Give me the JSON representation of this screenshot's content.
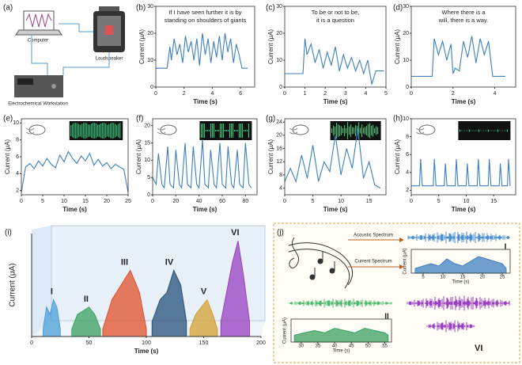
{
  "chart_data": [
    {
      "type": "line",
      "panel": "(b)",
      "annotation": [
        "If I have seen further it is by",
        "standing on shoulders of giants"
      ],
      "xlabel": "Time (s)",
      "ylabel": "Current (μA)",
      "color": "#3d7fbf",
      "x": [
        0,
        0.5,
        0.8,
        1,
        1.1,
        1.3,
        1.5,
        1.7,
        1.9,
        2.1,
        2.3,
        2.5,
        2.7,
        2.9,
        3.1,
        3.3,
        3.5,
        3.7,
        3.9,
        4.1,
        4.3,
        4.5,
        4.7,
        4.9,
        5.1,
        5.3,
        5.5,
        5.7,
        5.9,
        6.1,
        6.5
      ],
      "values": [
        7,
        7,
        7,
        15,
        10,
        18,
        12,
        16,
        9,
        19,
        13,
        17,
        10,
        18,
        8,
        20,
        12,
        18,
        9,
        17,
        11,
        19,
        10,
        20,
        13,
        18,
        9,
        16,
        12,
        7,
        7
      ],
      "xlim": [
        0,
        7
      ],
      "ylim": [
        0,
        30
      ],
      "xticks": [
        0,
        2,
        4,
        6
      ],
      "yticks": [
        0,
        10,
        20,
        30
      ]
    },
    {
      "type": "line",
      "panel": "(c)",
      "annotation": [
        "To be or not to be,",
        "it is a question"
      ],
      "xlabel": "Time (s)",
      "ylabel": "Current (μA)",
      "color": "#3d7fbf",
      "x": [
        0,
        0.5,
        0.9,
        1,
        1.1,
        1.3,
        1.5,
        1.7,
        1.9,
        2.1,
        2.3,
        2.5,
        2.7,
        2.9,
        3.1,
        3.3,
        3.5,
        3.7,
        3.9,
        4.1,
        4.3,
        4.5,
        4.9
      ],
      "values": [
        5,
        5,
        5,
        18,
        12,
        16,
        9,
        14,
        7,
        13,
        8,
        15,
        6,
        12,
        7,
        11,
        6,
        10,
        5,
        10,
        1,
        6,
        6
      ],
      "xlim": [
        0,
        5
      ],
      "ylim": [
        0,
        30
      ],
      "xticks": [
        0,
        1,
        2,
        3,
        4,
        5
      ],
      "yticks": [
        0,
        10,
        20,
        30
      ]
    },
    {
      "type": "line",
      "panel": "(d)",
      "annotation": [
        "Where there is a",
        "will, there is a way."
      ],
      "xlabel": "Time (s)",
      "ylabel": "Current (μA)",
      "color": "#3d7fbf",
      "x": [
        0,
        0.5,
        1,
        1.1,
        1.3,
        1.5,
        1.7,
        1.9,
        2,
        2.1,
        2.3,
        2.5,
        2.7,
        2.9,
        3.1,
        3.3,
        3.5,
        3.7,
        3.9,
        4.1,
        4.5
      ],
      "values": [
        4,
        4,
        4,
        18,
        12,
        17,
        10,
        16,
        5,
        7,
        6,
        17,
        11,
        19,
        9,
        18,
        12,
        17,
        4,
        4,
        4
      ],
      "xlim": [
        0,
        5
      ],
      "ylim": [
        0,
        30
      ],
      "xticks": [
        0,
        2,
        4
      ],
      "yticks": [
        0,
        10,
        20,
        30
      ]
    },
    {
      "type": "line",
      "panel": "(e)",
      "xlabel": "Time (s)",
      "ylabel": "Current (μA)",
      "color": "#3d7fbf",
      "x": [
        0,
        1,
        2,
        3,
        4,
        5,
        6,
        7,
        8,
        9,
        10,
        11,
        12,
        13,
        14,
        15,
        16,
        17,
        18,
        19,
        20,
        21,
        22,
        23,
        24,
        25
      ],
      "values": [
        1.8,
        4.8,
        5.2,
        4.6,
        5.5,
        4.9,
        5.8,
        5.1,
        4.7,
        6.2,
        5.4,
        6.6,
        5.8,
        5.2,
        6.1,
        5.5,
        6.4,
        5.0,
        5.7,
        4.9,
        5.3,
        4.6,
        5.1,
        4.8,
        4.5,
        1.8
      ],
      "xlim": [
        0,
        25
      ],
      "ylim": [
        1.5,
        10.5
      ],
      "xticks": [
        0,
        5,
        10,
        15,
        20,
        25
      ],
      "yticks": [
        2,
        4,
        6,
        8,
        10
      ]
    },
    {
      "type": "line",
      "panel": "(f)",
      "xlabel": "Time (s)",
      "ylabel": "Current (μA)",
      "color": "#3d7fbf",
      "x": [
        0,
        3,
        5,
        8,
        10,
        13,
        15,
        18,
        20,
        23,
        25,
        28,
        30,
        33,
        35,
        38,
        40,
        43,
        45,
        48,
        50,
        53,
        55,
        58,
        60,
        63,
        65,
        68,
        70,
        73,
        75,
        78,
        80,
        83,
        85
      ],
      "values": [
        5,
        3,
        12,
        3,
        2,
        14,
        3,
        2,
        13,
        3,
        2,
        15,
        3,
        2,
        14,
        3,
        2,
        16,
        3,
        2,
        13,
        3,
        2,
        15,
        3,
        2,
        14,
        3,
        2,
        13,
        3,
        2,
        15,
        3,
        2
      ],
      "xlim": [
        0,
        90
      ],
      "ylim": [
        0,
        22
      ],
      "xticks": [
        0,
        20,
        40,
        60,
        80
      ],
      "yticks": [
        0,
        5,
        10,
        15,
        20
      ]
    },
    {
      "type": "line",
      "panel": "(g)",
      "xlabel": "Time (s)",
      "ylabel": "Current (μA)",
      "color": "#3d7fbf",
      "x": [
        0,
        1,
        2,
        3,
        4,
        5,
        6,
        7,
        8,
        9,
        10,
        11,
        12,
        13,
        14,
        15,
        16,
        17
      ],
      "values": [
        6,
        10,
        6,
        14,
        7,
        17,
        6,
        12,
        9,
        20,
        8,
        16,
        10,
        22,
        7,
        12,
        5,
        4
      ],
      "xlim": [
        0,
        18
      ],
      "ylim": [
        2,
        25
      ],
      "xticks": [
        0,
        5,
        10,
        15
      ],
      "yticks": [
        4,
        8,
        12,
        16,
        20,
        24
      ]
    },
    {
      "type": "line",
      "panel": "(h)",
      "xlabel": "Time (s)",
      "ylabel": "Current (μA)",
      "color": "#3d7fbf",
      "x": [
        0,
        1.5,
        1.7,
        2,
        4,
        4.2,
        4.5,
        6,
        6.2,
        6.5,
        8,
        8.2,
        8.5,
        10,
        10.2,
        10.5,
        12,
        12.2,
        12.5,
        14,
        14.2,
        14.5,
        16,
        16.2,
        16.5,
        17.5,
        17.7,
        18
      ],
      "values": [
        2.5,
        2.5,
        5.5,
        2.5,
        2.5,
        5.5,
        2.5,
        2.5,
        5,
        2.5,
        2.5,
        5.5,
        2.5,
        2.5,
        5,
        2.5,
        2.5,
        5.5,
        2.5,
        2.5,
        5.5,
        2.5,
        2.5,
        5,
        2.5,
        2.5,
        5.5,
        2.5
      ],
      "xlim": [
        0,
        19
      ],
      "ylim": [
        1.5,
        10
      ],
      "xticks": [
        0,
        5,
        10,
        15
      ],
      "yticks": [
        2,
        4,
        6,
        8,
        10
      ]
    },
    {
      "type": "area",
      "panel": "(i)",
      "xlabel": "Time (s)",
      "ylabel": "Current (μA)",
      "xlim": [
        0,
        200
      ],
      "ylim": [
        0,
        14
      ],
      "xticks": [
        0,
        50,
        100,
        150,
        200
      ],
      "series": [
        {
          "name": "I",
          "color": "#4a9fd8",
          "x": [
            10,
            13,
            16,
            19,
            22,
            25
          ],
          "values": [
            1,
            4,
            3,
            5,
            4,
            1
          ]
        },
        {
          "name": "II",
          "color": "#3aa060",
          "x": [
            35,
            40,
            45,
            50,
            55,
            60
          ],
          "values": [
            1,
            3,
            3.5,
            4,
            3,
            1
          ]
        },
        {
          "name": "III",
          "color": "#e0502a",
          "x": [
            62,
            70,
            78,
            86,
            94,
            100
          ],
          "values": [
            1,
            5,
            7,
            9,
            6,
            1
          ]
        },
        {
          "name": "IV",
          "color": "#25507a",
          "x": [
            105,
            112,
            118,
            124,
            130,
            135
          ],
          "values": [
            2,
            5,
            6,
            9,
            7,
            2
          ]
        },
        {
          "name": "V",
          "color": "#d4a030",
          "x": [
            138,
            143,
            148,
            153,
            158,
            162
          ],
          "values": [
            1,
            3,
            4,
            5,
            3,
            1
          ]
        },
        {
          "name": "VI",
          "color": "#9a3fc0",
          "x": [
            165,
            170,
            175,
            180,
            185,
            190
          ],
          "values": [
            2,
            6,
            10,
            13,
            8,
            2
          ]
        }
      ]
    },
    {
      "type": "area",
      "xlabel": "Time (s)",
      "ylabel": "Current (μA)",
      "xlim": [
        2,
        27
      ],
      "ylim": [
        0,
        10
      ],
      "xticks": [
        5,
        10,
        15,
        20,
        25
      ],
      "series": [
        {
          "name": "I",
          "color": "#3d7fbf",
          "x": [
            3,
            5,
            7,
            9,
            11,
            13,
            15,
            17,
            19,
            21,
            23,
            25,
            26
          ],
          "values": [
            2,
            3,
            4,
            3,
            6,
            4,
            3,
            5,
            7,
            6,
            5,
            4,
            2
          ]
        }
      ]
    },
    {
      "type": "area",
      "xlabel": "Time (s)",
      "ylabel": "Current (μA)",
      "xlim": [
        27,
        57
      ],
      "ylim": [
        0,
        10
      ],
      "xticks": [
        30,
        35,
        40,
        45,
        50,
        55
      ],
      "series": [
        {
          "name": "II",
          "color": "#3aa060",
          "x": [
            28,
            31,
            34,
            37,
            40,
            43,
            46,
            49,
            52,
            55,
            56
          ],
          "values": [
            3,
            4,
            5,
            4,
            6,
            5,
            4,
            6,
            5,
            4,
            3
          ]
        }
      ]
    }
  ],
  "panel_a": {
    "label": "(a)",
    "computer": "Computer",
    "loudspeaker": "Loudspeaker",
    "workstation": "Electrochemical Workstation"
  },
  "panel_j": {
    "label": "(j)",
    "acoustic": "Acoustic Spectrum",
    "current": "Current Spectrum",
    "label_vi": "VI"
  }
}
